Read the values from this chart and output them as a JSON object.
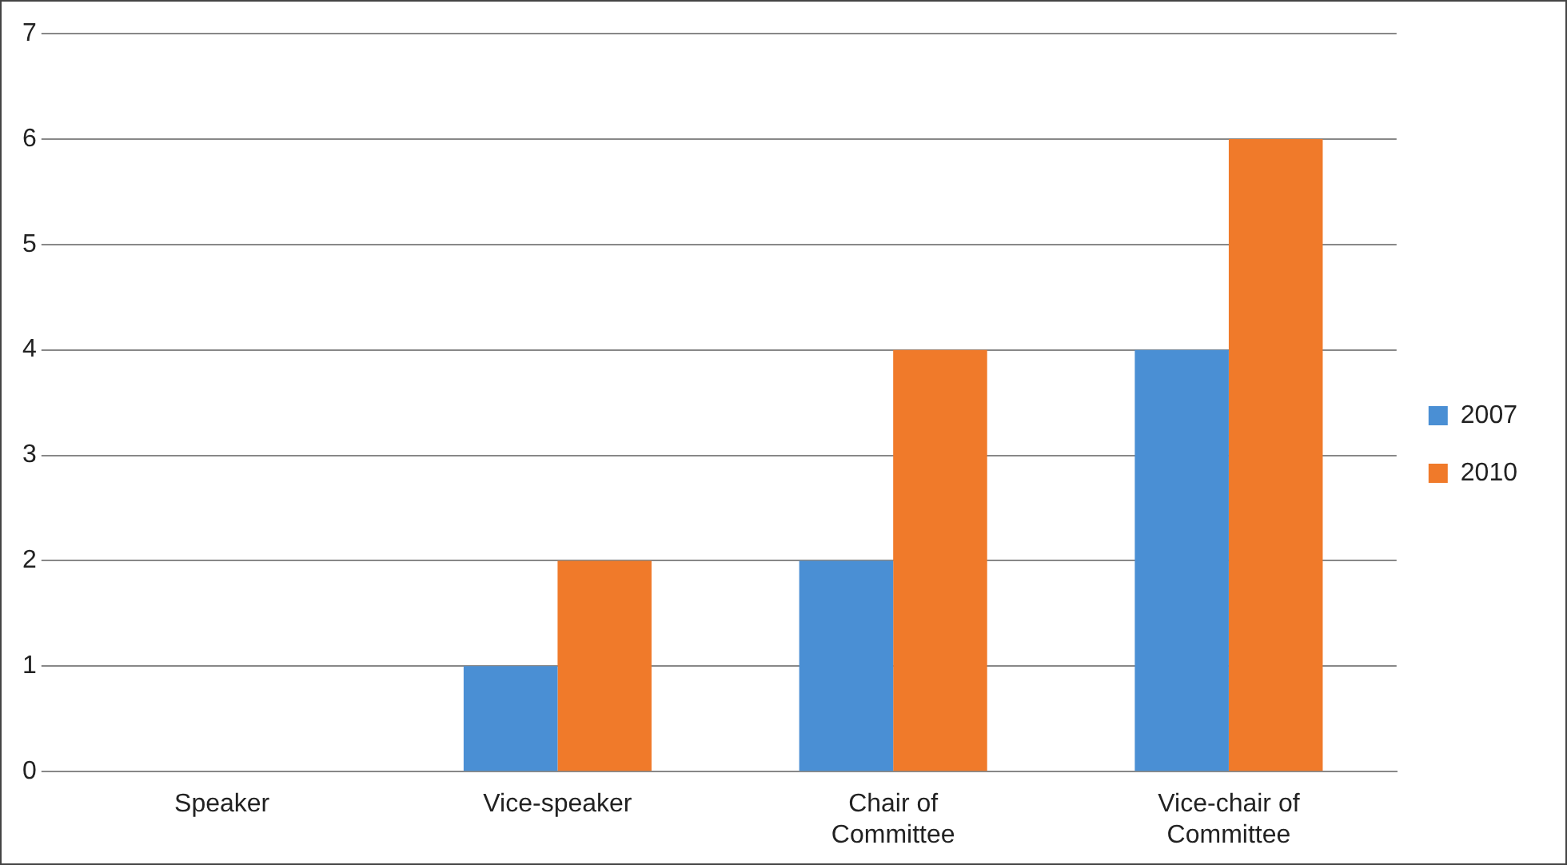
{
  "chart_data": {
    "type": "bar",
    "categories": [
      "Speaker",
      "Vice-speaker",
      "Chair of Committee",
      "Vice-chair of Committee"
    ],
    "series": [
      {
        "name": "2007",
        "color": "#4a8fd4",
        "values": [
          0,
          1,
          2,
          4
        ]
      },
      {
        "name": "2010",
        "color": "#f07a2a",
        "values": [
          0,
          2,
          4,
          6
        ]
      }
    ],
    "ylim": [
      0,
      7
    ],
    "yticks": [
      0,
      1,
      2,
      3,
      4,
      5,
      6,
      7
    ],
    "grid": "y",
    "legend": "right"
  }
}
